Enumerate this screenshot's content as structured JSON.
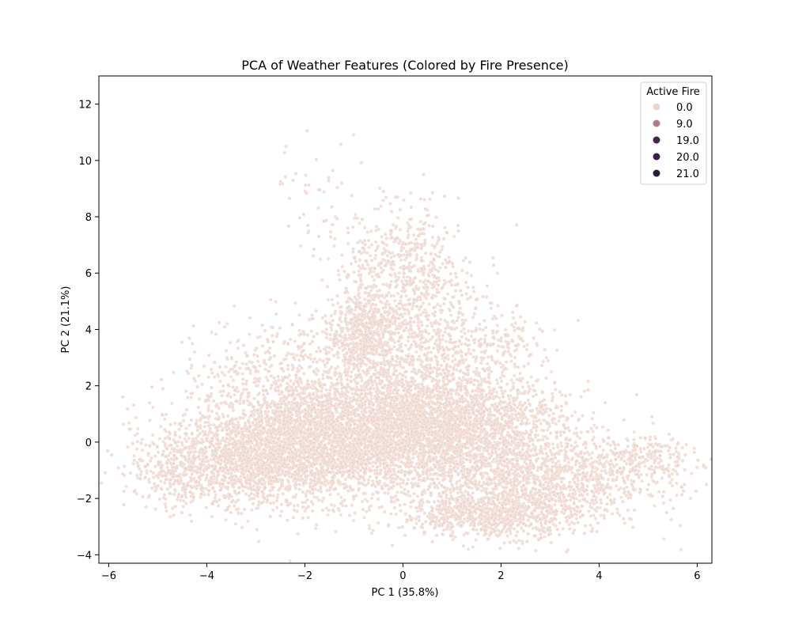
{
  "chart_data": {
    "type": "scatter",
    "title": "PCA of Weather Features (Colored by Fire Presence)",
    "xlabel": "PC 1 (35.8%)",
    "ylabel": "PC 2 (21.1%)",
    "xlim": [
      -6.2,
      6.3
    ],
    "ylim": [
      -4.3,
      13.0
    ],
    "xticks": [
      -6,
      -4,
      -2,
      0,
      2,
      4,
      6
    ],
    "xtick_labels": [
      "−6",
      "−4",
      "−2",
      "0",
      "2",
      "4",
      "6"
    ],
    "yticks": [
      -4,
      -2,
      0,
      2,
      4,
      6,
      8,
      10,
      12
    ],
    "ytick_labels": [
      "−4",
      "−2",
      "0",
      "2",
      "4",
      "6",
      "8",
      "10",
      "12"
    ],
    "grid": false,
    "legend": {
      "title": "Active Fire",
      "placement": "top-right",
      "entries": [
        {
          "label": "0.0",
          "color": "#ecd3cc"
        },
        {
          "label": "9.0",
          "color": "#b57996"
        },
        {
          "label": "19.0",
          "color": "#46234f"
        },
        {
          "label": "20.0",
          "color": "#3d2049"
        },
        {
          "label": "21.0",
          "color": "#2c1d3b"
        }
      ]
    },
    "series": [
      {
        "name": "0.0",
        "color": "#ecd3cc",
        "clusters": [
          {
            "cx": -1.5,
            "cy": 0.2,
            "sx": 1.4,
            "sy": 1.1,
            "n": 3200
          },
          {
            "cx": 0.8,
            "cy": 0.6,
            "sx": 1.2,
            "sy": 0.9,
            "n": 2600
          },
          {
            "cx": -3.0,
            "cy": -0.6,
            "sx": 1.0,
            "sy": 0.8,
            "n": 1400
          },
          {
            "cx": 2.6,
            "cy": -1.4,
            "sx": 1.2,
            "sy": 0.8,
            "n": 1300
          },
          {
            "cx": 1.8,
            "cy": -2.6,
            "sx": 0.9,
            "sy": 0.4,
            "n": 700
          },
          {
            "cx": -0.8,
            "cy": 3.8,
            "sx": 0.35,
            "sy": 0.8,
            "n": 700
          },
          {
            "cx": -0.3,
            "cy": 6.2,
            "sx": 0.6,
            "sy": 1.0,
            "n": 250
          },
          {
            "cx": 0.4,
            "cy": 5.5,
            "sx": 0.5,
            "sy": 1.3,
            "n": 400
          },
          {
            "cx": 0.6,
            "cy": 3.0,
            "sx": 0.9,
            "sy": 1.1,
            "n": 600
          },
          {
            "cx": 4.8,
            "cy": -0.6,
            "sx": 0.6,
            "sy": 0.4,
            "n": 250
          },
          {
            "cx": -2.5,
            "cy": 3.0,
            "sx": 0.8,
            "sy": 0.8,
            "n": 250
          },
          {
            "cx": -1.5,
            "cy": 8.8,
            "sx": 0.6,
            "sy": 1.0,
            "n": 50
          },
          {
            "cx": -4.6,
            "cy": -1.2,
            "sx": 0.5,
            "sy": 0.6,
            "n": 200
          },
          {
            "cx": 2.0,
            "cy": 3.4,
            "sx": 0.4,
            "sy": 0.5,
            "n": 80
          }
        ]
      }
    ]
  }
}
